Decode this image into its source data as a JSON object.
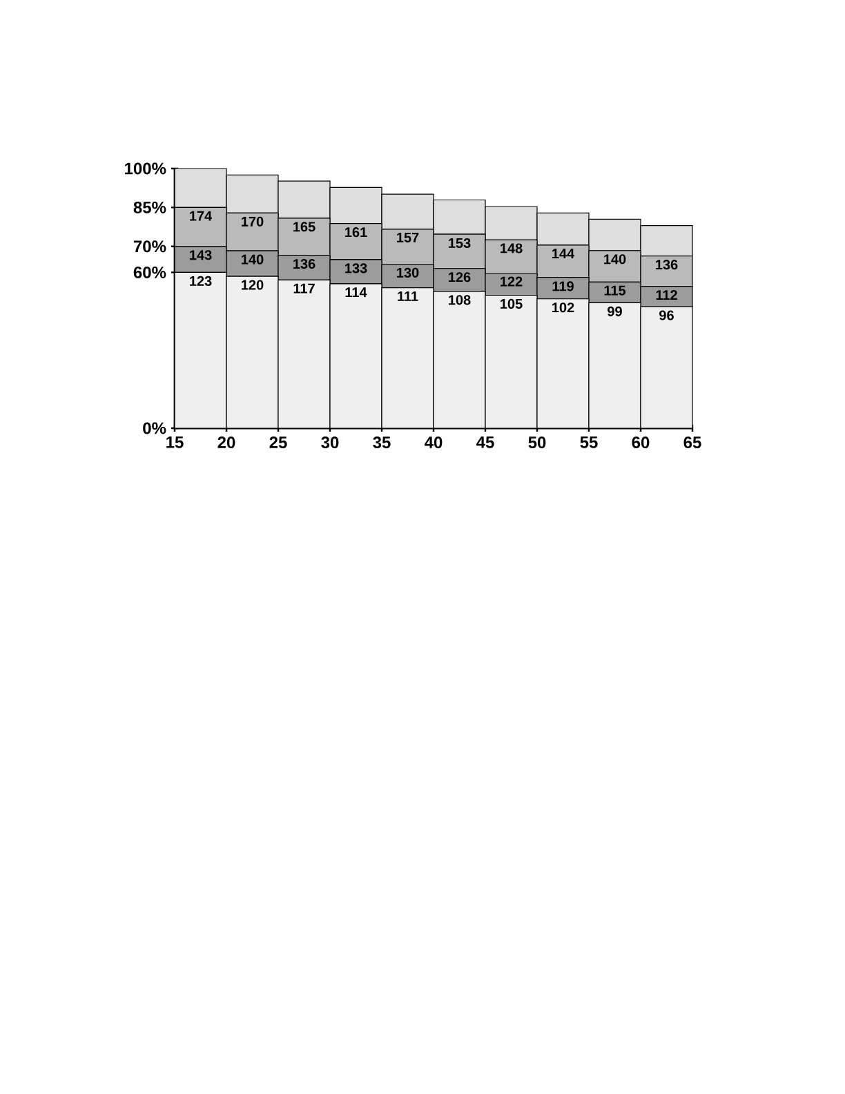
{
  "chart_data": {
    "type": "bar",
    "stacked": true,
    "x": [
      17.5,
      22.5,
      27.5,
      32.5,
      37.5,
      42.5,
      47.5,
      52.5,
      57.5,
      62.5
    ],
    "xlim": [
      15,
      65
    ],
    "xticks": [
      15,
      20,
      25,
      30,
      35,
      40,
      45,
      50,
      55,
      60,
      65
    ],
    "ylim": [
      0,
      100
    ],
    "yticks": [
      {
        "value": 0,
        "label": "0%"
      },
      {
        "value": 60,
        "label": "60%"
      },
      {
        "value": 70,
        "label": "70%"
      },
      {
        "value": 85,
        "label": "85%"
      },
      {
        "value": 100,
        "label": "100%"
      }
    ],
    "series": [
      {
        "color": "#efefef",
        "values": [
          60,
          58.5,
          57.1,
          55.6,
          54.1,
          52.7,
          51.2,
          49.8,
          48.3,
          46.8
        ]
      },
      {
        "color": "#9c9c9c",
        "values": [
          10,
          9.8,
          9.5,
          9.3,
          9.0,
          8.8,
          8.5,
          8.3,
          8.0,
          7.8
        ]
      },
      {
        "color": "#bababa",
        "values": [
          15,
          14.6,
          14.3,
          13.9,
          13.5,
          13.2,
          12.8,
          12.4,
          12.1,
          11.7
        ]
      },
      {
        "color": "#dedede",
        "values": [
          15,
          14.6,
          14.3,
          13.9,
          13.5,
          13.2,
          12.8,
          12.4,
          12.1,
          11.7
        ]
      }
    ],
    "annotations": [
      {
        "text": "123",
        "x": 17.5,
        "y": 60
      },
      {
        "text": "120",
        "x": 22.5,
        "y": 58.5
      },
      {
        "text": "117",
        "x": 27.5,
        "y": 57.1
      },
      {
        "text": "114",
        "x": 32.5,
        "y": 55.6
      },
      {
        "text": "111",
        "x": 37.5,
        "y": 54.1
      },
      {
        "text": "108",
        "x": 42.5,
        "y": 52.7
      },
      {
        "text": "105",
        "x": 47.5,
        "y": 51.2
      },
      {
        "text": "102",
        "x": 52.5,
        "y": 49.8
      },
      {
        "text": "99",
        "x": 57.5,
        "y": 48.3
      },
      {
        "text": "96",
        "x": 62.5,
        "y": 46.8
      },
      {
        "text": "143",
        "x": 17.5,
        "y": 70
      },
      {
        "text": "140",
        "x": 22.5,
        "y": 68.3
      },
      {
        "text": "136",
        "x": 27.5,
        "y": 66.6
      },
      {
        "text": "133",
        "x": 32.5,
        "y": 64.9
      },
      {
        "text": "130",
        "x": 37.5,
        "y": 63.2
      },
      {
        "text": "126",
        "x": 42.5,
        "y": 61.5
      },
      {
        "text": "122",
        "x": 47.5,
        "y": 59.8
      },
      {
        "text": "119",
        "x": 52.5,
        "y": 58.0
      },
      {
        "text": "115",
        "x": 57.5,
        "y": 56.3
      },
      {
        "text": "112",
        "x": 62.5,
        "y": 54.6
      },
      {
        "text": "174",
        "x": 17.5,
        "y": 85
      },
      {
        "text": "170",
        "x": 22.5,
        "y": 82.9
      },
      {
        "text": "165",
        "x": 27.5,
        "y": 80.9
      },
      {
        "text": "161",
        "x": 32.5,
        "y": 78.8
      },
      {
        "text": "157",
        "x": 37.5,
        "y": 76.7
      },
      {
        "text": "153",
        "x": 42.5,
        "y": 74.6
      },
      {
        "text": "148",
        "x": 47.5,
        "y": 72.6
      },
      {
        "text": "144",
        "x": 52.5,
        "y": 70.5
      },
      {
        "text": "140",
        "x": 57.5,
        "y": 68.4
      },
      {
        "text": "136",
        "x": 62.5,
        "y": 66.3
      }
    ]
  }
}
